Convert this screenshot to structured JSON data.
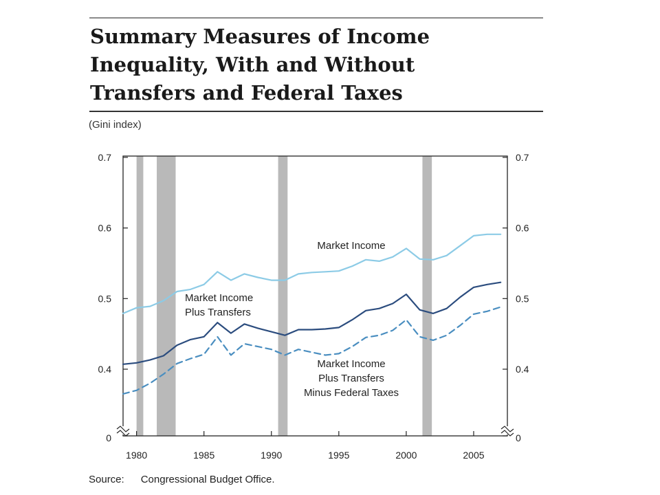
{
  "title_lines": [
    "Summary Measures of Income",
    "Inequality, With and Without",
    "Transfers and Federal Taxes"
  ],
  "unit_label": "(Gini index)",
  "source": {
    "label": "Source:",
    "text": "Congressional Budget Office."
  },
  "chart_data": {
    "type": "line",
    "title": "Summary Measures of Income Inequality, With and Without Transfers and Federal Taxes",
    "ylabel": "(Gini index)",
    "xlim": [
      1979,
      2007.5
    ],
    "ylim": [
      0,
      0.7
    ],
    "axis_break": "y-axis broken between 0 and 0.3",
    "y_ticks": [
      {
        "v": 0.7,
        "label": "0.7"
      },
      {
        "v": 0.6,
        "label": "0.6"
      },
      {
        "v": 0.5,
        "label": "0.5"
      },
      {
        "v": 0.4,
        "label": "0.4"
      },
      {
        "v": 0,
        "label": "0"
      }
    ],
    "x_ticks": [
      {
        "v": 1980,
        "label": "1980"
      },
      {
        "v": 1985,
        "label": "1985"
      },
      {
        "v": 1990,
        "label": "1990"
      },
      {
        "v": 1995,
        "label": "1995"
      },
      {
        "v": 2000,
        "label": "2000"
      },
      {
        "v": 2005,
        "label": "2005"
      }
    ],
    "recessions": [
      [
        1980.0,
        1980.5
      ],
      [
        1981.5,
        1982.9
      ],
      [
        1990.5,
        1991.2
      ],
      [
        2001.2,
        2001.9
      ]
    ],
    "x": [
      1979,
      1980,
      1981,
      1982,
      1983,
      1984,
      1985,
      1986,
      1987,
      1988,
      1989,
      1990,
      1991,
      1992,
      1993,
      1994,
      1995,
      1996,
      1997,
      1998,
      1999,
      2000,
      2001,
      2002,
      2003,
      2004,
      2005,
      2006,
      2007
    ],
    "series": [
      {
        "name": "Market Income",
        "label_lines": [
          "Market Income"
        ],
        "color": "#8ccbe6",
        "style": "solid",
        "values": [
          0.479,
          0.487,
          0.489,
          0.497,
          0.51,
          0.513,
          0.52,
          0.538,
          0.526,
          0.535,
          0.53,
          0.526,
          0.526,
          0.535,
          0.537,
          0.538,
          0.539,
          0.546,
          0.555,
          0.553,
          0.559,
          0.571,
          0.556,
          0.555,
          0.561,
          0.575,
          0.589,
          0.591,
          0.591
        ]
      },
      {
        "name": "Market Income Plus Transfers",
        "label_lines": [
          "Market Income",
          "Plus Transfers"
        ],
        "color": "#2b4c7e",
        "style": "solid",
        "values": [
          0.407,
          0.409,
          0.413,
          0.419,
          0.434,
          0.442,
          0.446,
          0.466,
          0.451,
          0.464,
          0.458,
          0.453,
          0.448,
          0.456,
          0.456,
          0.457,
          0.459,
          0.47,
          0.483,
          0.486,
          0.493,
          0.506,
          0.484,
          0.479,
          0.486,
          0.502,
          0.516,
          0.52,
          0.523
        ]
      },
      {
        "name": "Market Income Plus Transfers Minus Federal Taxes",
        "label_lines": [
          "Market Income",
          "Plus Transfers",
          "Minus Federal Taxes"
        ],
        "color": "#4a8ec0",
        "style": "dashed",
        "values": [
          0.365,
          0.37,
          0.38,
          0.393,
          0.408,
          0.415,
          0.421,
          0.446,
          0.42,
          0.436,
          0.432,
          0.428,
          0.42,
          0.428,
          0.424,
          0.42,
          0.422,
          0.432,
          0.445,
          0.448,
          0.455,
          0.47,
          0.446,
          0.441,
          0.448,
          0.462,
          0.478,
          0.482,
          0.488
        ]
      }
    ]
  }
}
